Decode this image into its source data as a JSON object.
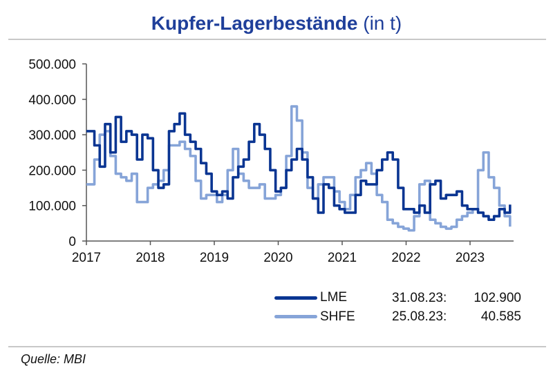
{
  "title_bold": "Kupfer-Lagerbestände",
  "title_rest": "(in t)",
  "source": "Quelle: MBI",
  "legend": [
    {
      "name": "LME",
      "date": "31.08.23:",
      "value": "102.900",
      "color": "#0a3592"
    },
    {
      "name": "SHFE",
      "date": "25.08.23:",
      "value": "40.585",
      "color": "#86a4d8"
    }
  ],
  "chart_data": {
    "type": "line",
    "title": "Kupfer-Lagerbestände (in t)",
    "x_start": "2017-01",
    "x_frequency": "monthly",
    "x_ticks": [
      "2017",
      "2018",
      "2019",
      "2020",
      "2021",
      "2022",
      "2023"
    ],
    "y_ticks": [
      "0",
      "100.000",
      "200.000",
      "300.000",
      "400.000",
      "500.000"
    ],
    "ylim": [
      0,
      500000
    ],
    "xlim": [
      "2017-01",
      "2023-08"
    ],
    "grid": false,
    "legend_placement": "bottom-right",
    "series": [
      {
        "name": "LME",
        "color": "#0a3592",
        "values_thousand_t": [
          310,
          270,
          210,
          330,
          250,
          350,
          280,
          310,
          300,
          230,
          300,
          290,
          200,
          150,
          160,
          310,
          330,
          360,
          300,
          280,
          260,
          220,
          190,
          140,
          130,
          140,
          120,
          180,
          210,
          230,
          280,
          330,
          300,
          260,
          200,
          140,
          150,
          200,
          230,
          260,
          230,
          180,
          120,
          80,
          160,
          150,
          100,
          90,
          80,
          80,
          130,
          170,
          160,
          160,
          200,
          230,
          250,
          230,
          150,
          90,
          90,
          80,
          100,
          80,
          160,
          170,
          120,
          130,
          130,
          140,
          100,
          90,
          90,
          80,
          70,
          60,
          70,
          90,
          80,
          102.9
        ]
      },
      {
        "name": "SHFE",
        "color": "#86a4d8",
        "values_thousand_t": [
          160,
          230,
          300,
          310,
          240,
          190,
          180,
          170,
          190,
          110,
          110,
          150,
          160,
          170,
          200,
          270,
          270,
          280,
          260,
          240,
          170,
          120,
          130,
          130,
          110,
          130,
          200,
          260,
          190,
          170,
          150,
          150,
          160,
          120,
          120,
          130,
          150,
          240,
          380,
          340,
          250,
          150,
          120,
          160,
          180,
          180,
          140,
          110,
          90,
          130,
          180,
          200,
          220,
          190,
          130,
          110,
          60,
          50,
          40,
          35,
          30,
          70,
          160,
          170,
          60,
          50,
          40,
          35,
          40,
          60,
          70,
          80,
          90,
          200,
          250,
          180,
          150,
          100,
          70,
          40.585
        ]
      }
    ]
  }
}
